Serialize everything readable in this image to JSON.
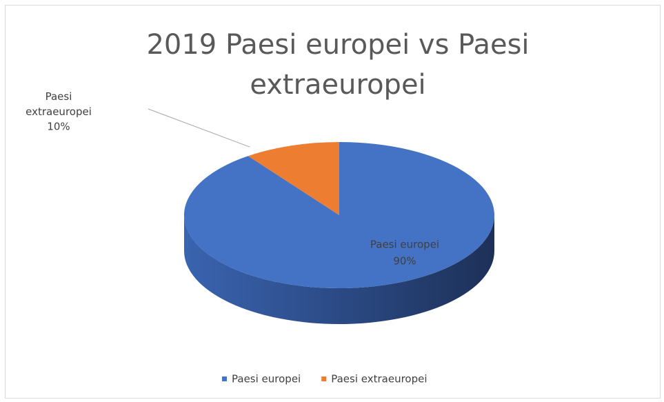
{
  "chart_data": {
    "type": "pie",
    "title": "2019 Paesi europei vs Paesi extraeuropei",
    "categories": [
      "Paesi europei",
      "Paesi extraeuropei"
    ],
    "values": [
      90,
      10
    ],
    "value_labels": [
      "90%",
      "10%"
    ],
    "colors": [
      "#4472c4",
      "#ed7d31"
    ],
    "legend": "bottom"
  }
}
